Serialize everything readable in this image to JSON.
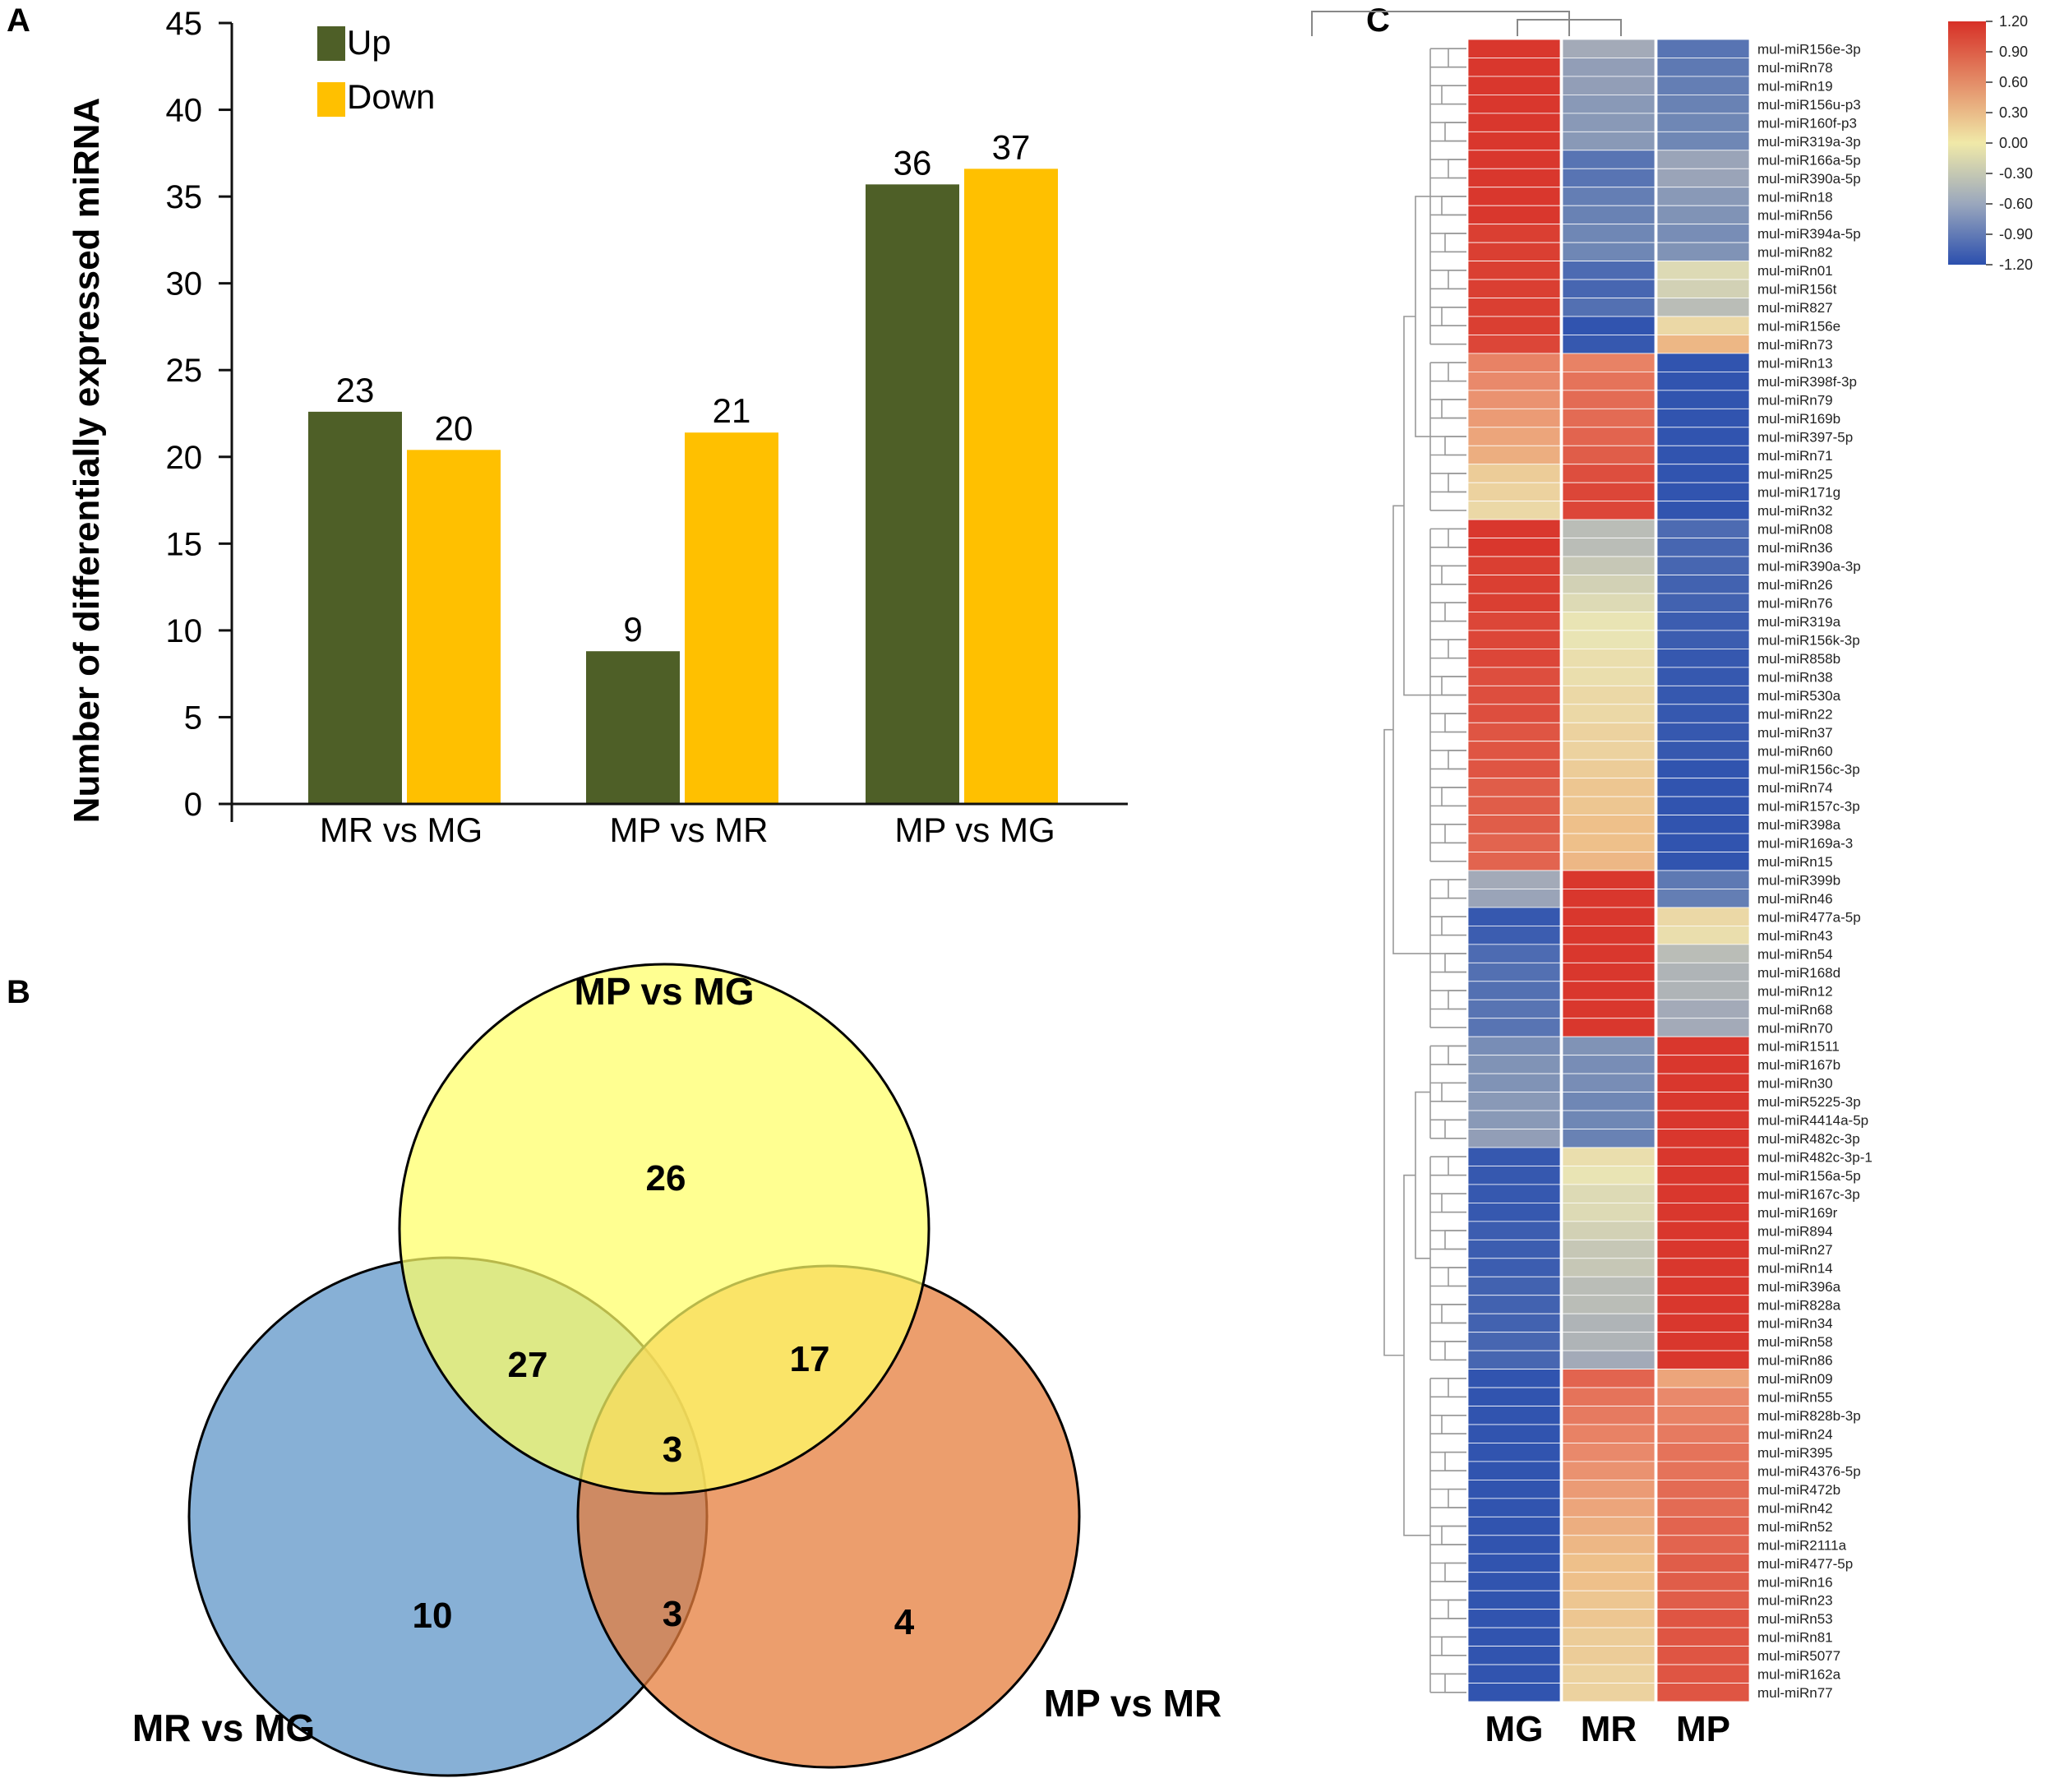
{
  "panels": {
    "a": "A",
    "b": "B",
    "c": "C"
  },
  "colors": {
    "up": "#4e5f27",
    "down": "#ffc000",
    "venn_a": "#ffff66",
    "venn_b": "#5f96c8",
    "venn_c": "#e67e3c"
  },
  "chart_data": [
    {
      "type": "bar",
      "ylabel": "Number of differentially expressed miRNA",
      "categories": [
        "MR vs MG",
        "MP vs MR",
        "MP vs MG"
      ],
      "ylim": [
        0,
        45
      ],
      "yticks": [
        "0",
        "5",
        "10",
        "15",
        "20",
        "25",
        "30",
        "35",
        "40",
        "45"
      ],
      "series": [
        {
          "name": "Up",
          "values": [
            22.6,
            8.8,
            35.7
          ],
          "labels": [
            "23",
            "9",
            "36"
          ]
        },
        {
          "name": "Down",
          "values": [
            20.4,
            21.4,
            36.6
          ],
          "labels": [
            "20",
            "21",
            "37"
          ]
        }
      ]
    },
    {
      "type": "venn",
      "sets": [
        "MP vs MG",
        "MR vs MG",
        "MP vs MR"
      ],
      "regions": {
        "only_mp_mg": "26",
        "mp_mg_and_mr_mg": "27",
        "mp_mg_and_mp_mr": "17",
        "all_three": "3",
        "only_mr_mg": "10",
        "mr_mg_and_mp_mr": "3",
        "only_mp_mr": "4"
      }
    },
    {
      "type": "heatmap",
      "columns": [
        "MG",
        "MR",
        "MP"
      ],
      "colorbar": {
        "ticks": [
          "1.20",
          "0.90",
          "0.60",
          "0.30",
          "0.00",
          "-0.30",
          "-0.60",
          "-0.90",
          "-1.20"
        ]
      },
      "rows": [
        "mul-miR156e-3p",
        "mul-miRn78",
        "mul-miRn19",
        "mul-miR156u-p3",
        "mul-miR160f-p3",
        "mul-miR319a-3p",
        "mul-miR166a-5p",
        "mul-miR390a-5p",
        "mul-miRn18",
        "mul-miRn56",
        "mul-miR394a-5p",
        "mul-miRn82",
        "mul-miRn01",
        "mul-miR156t",
        "mul-miR827",
        "mul-miR156e",
        "mul-miRn73",
        "mul-miRn13",
        "mul-miR398f-3p",
        "mul-miRn79",
        "mul-miR169b",
        "mul-miR397-5p",
        "mul-miRn71",
        "mul-miRn25",
        "mul-miR171g",
        "mul-miRn32",
        "mul-miRn08",
        "mul-miRn36",
        "mul-miR390a-3p",
        "mul-miRn26",
        "mul-miRn76",
        "mul-miR319a",
        "mul-miR156k-3p",
        "mul-miR858b",
        "mul-miRn38",
        "mul-miR530a",
        "mul-miRn22",
        "mul-miRn37",
        "mul-miRn60",
        "mul-miR156c-3p",
        "mul-miRn74",
        "mul-miR157c-3p",
        "mul-miR398a",
        "mul-miR169a-3",
        "mul-miRn15",
        "mul-miR399b",
        "mul-miRn46",
        "mul-miR477a-5p",
        "mul-miRn43",
        "mul-miRn54",
        "mul-miR168d",
        "mul-miRn12",
        "mul-miRn68",
        "mul-miRn70",
        "mul-miR1511",
        "mul-miR167b",
        "mul-miRn30",
        "mul-miR5225-3p",
        "mul-miR4414a-5p",
        "mul-miR482c-3p",
        "mul-miR482c-3p-1",
        "mul-miR156a-5p",
        "mul-miR167c-3p",
        "mul-miR169r",
        "mul-miR894",
        "mul-miRn27",
        "mul-miRn14",
        "mul-miR396a",
        "mul-miR828a",
        "mul-miRn34",
        "mul-miRn58",
        "mul-miRn86",
        "mul-miRn09",
        "mul-miRn55",
        "mul-miR828b-3p",
        "mul-miRn24",
        "mul-miR395",
        "mul-miR4376-5p",
        "mul-miR472b",
        "mul-miRn42",
        "mul-miRn52",
        "mul-miR2111a",
        "mul-miR477-5p",
        "mul-miRn16",
        "mul-miRn23",
        "mul-miRn53",
        "mul-miRn81",
        "mul-miR5077",
        "mul-miR162a",
        "mul-miRn77"
      ],
      "values": [
        [
          1.15,
          -0.3,
          -0.8
        ],
        [
          1.15,
          -0.4,
          -0.75
        ],
        [
          1.15,
          -0.4,
          -0.7
        ],
        [
          1.15,
          -0.45,
          -0.65
        ],
        [
          1.15,
          -0.45,
          -0.6
        ],
        [
          1.15,
          -0.45,
          -0.6
        ],
        [
          1.15,
          -0.8,
          -0.35
        ],
        [
          1.15,
          -0.8,
          -0.35
        ],
        [
          1.15,
          -0.7,
          -0.45
        ],
        [
          1.15,
          -0.65,
          -0.5
        ],
        [
          1.1,
          -0.6,
          -0.55
        ],
        [
          1.1,
          -0.6,
          -0.5
        ],
        [
          1.1,
          -0.9,
          -0.05
        ],
        [
          1.1,
          -0.95,
          -0.1
        ],
        [
          1.1,
          -0.85,
          -0.2
        ],
        [
          1.1,
          -1.15,
          0.1
        ],
        [
          1.05,
          -1.1,
          0.35
        ],
        [
          0.65,
          0.65,
          -1.15
        ],
        [
          0.6,
          0.75,
          -1.15
        ],
        [
          0.55,
          0.8,
          -1.15
        ],
        [
          0.5,
          0.8,
          -1.15
        ],
        [
          0.45,
          0.85,
          -1.15
        ],
        [
          0.4,
          0.9,
          -1.15
        ],
        [
          0.2,
          1.0,
          -1.15
        ],
        [
          0.15,
          1.05,
          -1.15
        ],
        [
          0.1,
          1.05,
          -1.15
        ],
        [
          1.15,
          -0.2,
          -0.9
        ],
        [
          1.15,
          -0.2,
          -0.95
        ],
        [
          1.1,
          -0.15,
          -0.95
        ],
        [
          1.1,
          -0.1,
          -1.0
        ],
        [
          1.1,
          -0.05,
          -1.0
        ],
        [
          1.05,
          0.0,
          -1.05
        ],
        [
          1.05,
          0.0,
          -1.05
        ],
        [
          1.05,
          0.05,
          -1.1
        ],
        [
          1.0,
          0.05,
          -1.1
        ],
        [
          1.0,
          0.1,
          -1.1
        ],
        [
          1.0,
          0.1,
          -1.1
        ],
        [
          0.95,
          0.15,
          -1.1
        ],
        [
          0.95,
          0.15,
          -1.1
        ],
        [
          0.95,
          0.2,
          -1.15
        ],
        [
          0.9,
          0.25,
          -1.15
        ],
        [
          0.9,
          0.25,
          -1.15
        ],
        [
          0.9,
          0.3,
          -1.15
        ],
        [
          0.85,
          0.3,
          -1.15
        ],
        [
          0.85,
          0.35,
          -1.15
        ],
        [
          -0.3,
          1.15,
          -0.75
        ],
        [
          -0.35,
          1.15,
          -0.7
        ],
        [
          -1.1,
          1.15,
          0.1
        ],
        [
          -1.05,
          1.15,
          0.05
        ],
        [
          -0.9,
          1.15,
          -0.2
        ],
        [
          -0.85,
          1.15,
          -0.25
        ],
        [
          -0.85,
          1.15,
          -0.25
        ],
        [
          -0.8,
          1.15,
          -0.3
        ],
        [
          -0.8,
          1.15,
          -0.3
        ],
        [
          -0.55,
          -0.5,
          1.15
        ],
        [
          -0.5,
          -0.55,
          1.15
        ],
        [
          -0.5,
          -0.55,
          1.15
        ],
        [
          -0.45,
          -0.6,
          1.15
        ],
        [
          -0.45,
          -0.6,
          1.15
        ],
        [
          -0.4,
          -0.65,
          1.15
        ],
        [
          -1.1,
          0.05,
          1.15
        ],
        [
          -1.1,
          0.0,
          1.15
        ],
        [
          -1.1,
          -0.05,
          1.15
        ],
        [
          -1.1,
          -0.05,
          1.15
        ],
        [
          -1.05,
          -0.1,
          1.15
        ],
        [
          -1.05,
          -0.15,
          1.15
        ],
        [
          -1.05,
          -0.15,
          1.15
        ],
        [
          -1.0,
          -0.2,
          1.15
        ],
        [
          -1.0,
          -0.2,
          1.15
        ],
        [
          -1.0,
          -0.25,
          1.15
        ],
        [
          -0.95,
          -0.25,
          1.15
        ],
        [
          -0.95,
          -0.3,
          1.15
        ],
        [
          -1.15,
          0.85,
          0.45
        ],
        [
          -1.15,
          0.75,
          0.6
        ],
        [
          -1.15,
          0.7,
          0.65
        ],
        [
          -1.15,
          0.65,
          0.7
        ],
        [
          -1.15,
          0.6,
          0.75
        ],
        [
          -1.15,
          0.55,
          0.75
        ],
        [
          -1.15,
          0.5,
          0.8
        ],
        [
          -1.15,
          0.45,
          0.8
        ],
        [
          -1.15,
          0.4,
          0.85
        ],
        [
          -1.15,
          0.35,
          0.85
        ],
        [
          -1.15,
          0.3,
          0.9
        ],
        [
          -1.15,
          0.3,
          0.9
        ],
        [
          -1.15,
          0.25,
          0.9
        ],
        [
          -1.15,
          0.25,
          0.95
        ],
        [
          -1.15,
          0.2,
          0.95
        ],
        [
          -1.15,
          0.2,
          0.95
        ],
        [
          -1.15,
          0.15,
          0.95
        ],
        [
          -1.15,
          0.15,
          0.95
        ]
      ]
    }
  ]
}
